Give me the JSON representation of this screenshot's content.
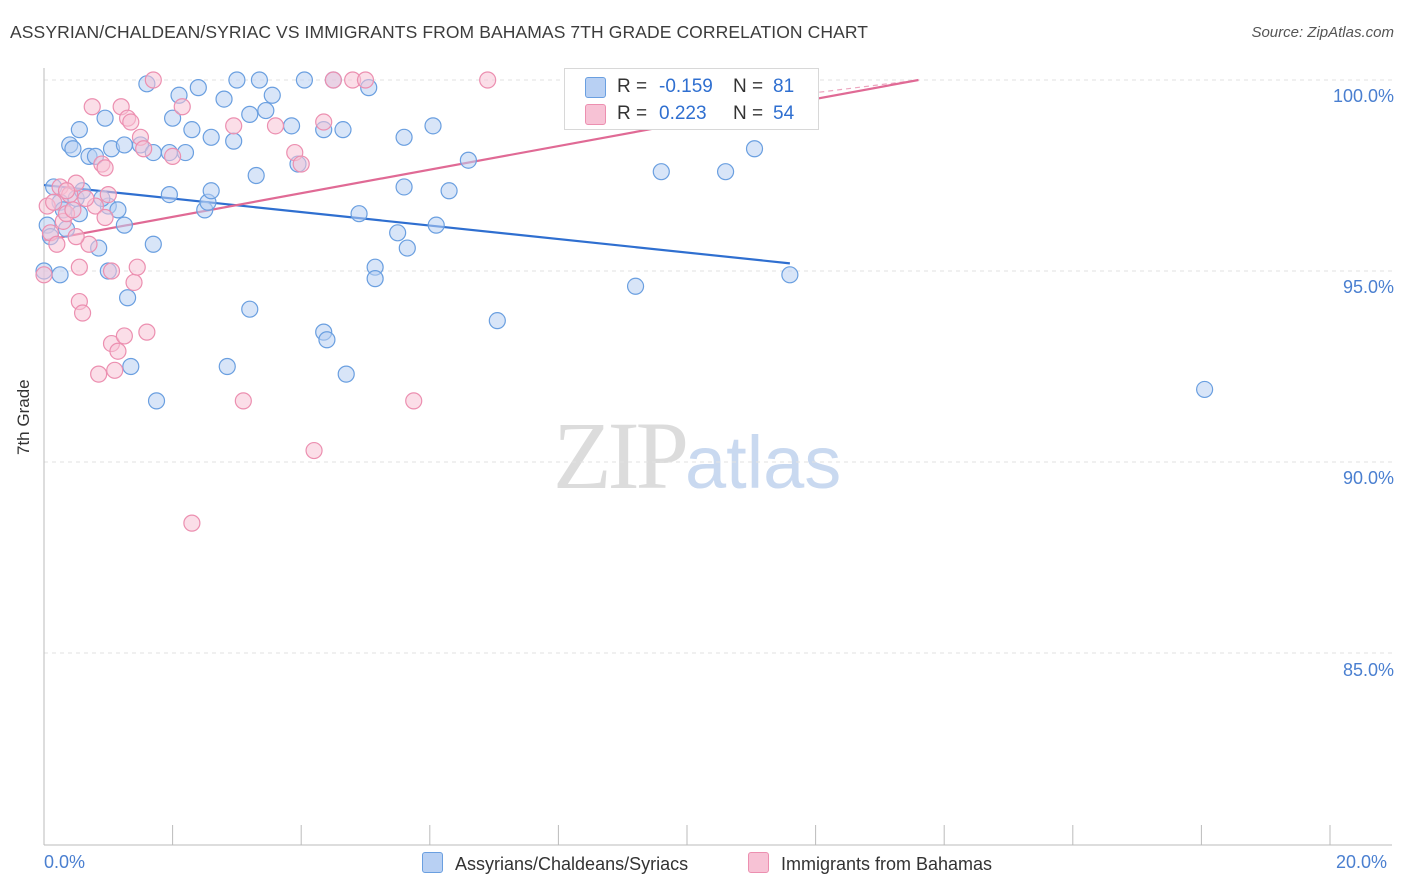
{
  "header": {
    "title": "ASSYRIAN/CHALDEAN/SYRIAC VS IMMIGRANTS FROM BAHAMAS 7TH GRADE CORRELATION CHART",
    "source": "Source: ZipAtlas.com"
  },
  "watermark": {
    "zip": "ZIP",
    "atlas": "atlas"
  },
  "legend": {
    "series1": {
      "r_label": "R =",
      "r_value": "-0.159",
      "n_label": "N =",
      "n_value": "81"
    },
    "series2": {
      "r_label": "R =",
      "r_value": "0.223",
      "n_label": "N =",
      "n_value": "54"
    }
  },
  "colors": {
    "blue": "#6a9fe0",
    "blue_fill": "#b8d0f3",
    "blue_line": "#2f6fd0",
    "pink": "#ec8fb0",
    "pink_fill": "#f7c2d5",
    "pink_line": "#e06a95",
    "tick_text": "#4a7fd0",
    "grid": "#e2e2e2"
  },
  "chart_data": {
    "type": "scatter",
    "title": "ASSYRIAN/CHALDEAN/SYRIAC VS IMMIGRANTS FROM BAHAMAS 7TH GRADE CORRELATION CHART",
    "xlabel": "",
    "ylabel": "7th Grade",
    "xlim": [
      0,
      20
    ],
    "ylim": [
      80.5,
      100.5
    ],
    "x_tick_labels": [
      "0.0%",
      "20.0%"
    ],
    "y_ticks": [
      85,
      90,
      95,
      100
    ],
    "y_tick_labels": [
      "85.0%",
      "90.0%",
      "95.0%",
      "100.0%"
    ],
    "grid": true,
    "legend_position": "top-center",
    "series": [
      {
        "name": "Assyrians/Chaldeans/Syriacs",
        "color": "blue",
        "R": -0.159,
        "N": 81,
        "trend": {
          "x": [
            0.0,
            11.6
          ],
          "y": [
            97.25,
            95.2
          ]
        },
        "points": [
          [
            0.05,
            96.2
          ],
          [
            0.1,
            95.9
          ],
          [
            0.15,
            97.2
          ],
          [
            0.25,
            96.8
          ],
          [
            0.35,
            96.1
          ],
          [
            0.25,
            94.9
          ],
          [
            0.55,
            96.5
          ],
          [
            0.4,
            98.3
          ],
          [
            0.45,
            98.2
          ],
          [
            0.55,
            98.7
          ],
          [
            0.5,
            96.9
          ],
          [
            0.6,
            97.1
          ],
          [
            0.7,
            98.0
          ],
          [
            0.8,
            98.0
          ],
          [
            0.85,
            95.6
          ],
          [
            0.95,
            99.0
          ],
          [
            1.05,
            98.2
          ],
          [
            1.0,
            96.7
          ],
          [
            1.0,
            95.0
          ],
          [
            1.25,
            98.3
          ],
          [
            1.25,
            96.2
          ],
          [
            1.3,
            94.3
          ],
          [
            1.35,
            92.5
          ],
          [
            1.5,
            98.3
          ],
          [
            1.6,
            99.9
          ],
          [
            1.7,
            98.1
          ],
          [
            1.7,
            95.7
          ],
          [
            1.75,
            91.6
          ],
          [
            1.95,
            97.0
          ],
          [
            1.95,
            98.1
          ],
          [
            2.0,
            99.0
          ],
          [
            2.1,
            99.6
          ],
          [
            2.2,
            98.1
          ],
          [
            2.3,
            98.7
          ],
          [
            2.4,
            99.8
          ],
          [
            2.5,
            96.6
          ],
          [
            2.55,
            96.8
          ],
          [
            2.6,
            97.1
          ],
          [
            2.6,
            98.5
          ],
          [
            2.8,
            99.5
          ],
          [
            2.85,
            92.5
          ],
          [
            3.0,
            100.0
          ],
          [
            3.2,
            99.1
          ],
          [
            3.2,
            94.0
          ],
          [
            3.3,
            97.5
          ],
          [
            3.35,
            100.0
          ],
          [
            3.45,
            99.2
          ],
          [
            3.55,
            99.6
          ],
          [
            3.85,
            98.8
          ],
          [
            3.95,
            97.8
          ],
          [
            4.05,
            100.0
          ],
          [
            4.35,
            98.7
          ],
          [
            4.35,
            93.4
          ],
          [
            4.4,
            93.2
          ],
          [
            4.5,
            100.0
          ],
          [
            4.7,
            92.3
          ],
          [
            4.9,
            96.5
          ],
          [
            5.05,
            99.8
          ],
          [
            5.15,
            95.1
          ],
          [
            5.15,
            94.8
          ],
          [
            5.5,
            96.0
          ],
          [
            5.6,
            97.2
          ],
          [
            5.6,
            98.5
          ],
          [
            5.65,
            95.6
          ],
          [
            6.05,
            98.8
          ],
          [
            6.1,
            96.2
          ],
          [
            6.3,
            97.1
          ],
          [
            6.6,
            97.9
          ],
          [
            7.05,
            93.7
          ],
          [
            9.2,
            94.6
          ],
          [
            9.6,
            97.6
          ],
          [
            10.6,
            97.6
          ],
          [
            11.05,
            98.2
          ],
          [
            11.6,
            94.9
          ],
          [
            18.05,
            91.9
          ],
          [
            0.3,
            96.6
          ],
          [
            0.9,
            96.9
          ],
          [
            1.15,
            96.6
          ],
          [
            2.95,
            98.4
          ],
          [
            4.65,
            98.7
          ],
          [
            0.0,
            95.0
          ]
        ]
      },
      {
        "name": "Immigrants from Bahamas",
        "color": "pink",
        "R": 0.223,
        "N": 54,
        "trend": {
          "x": [
            0.0,
            13.6
          ],
          "y": [
            95.8,
            100.0
          ]
        },
        "points": [
          [
            0.05,
            96.7
          ],
          [
            0.1,
            96.0
          ],
          [
            0.2,
            95.7
          ],
          [
            0.25,
            97.2
          ],
          [
            0.3,
            96.3
          ],
          [
            0.35,
            96.5
          ],
          [
            0.4,
            97.0
          ],
          [
            0.45,
            96.6
          ],
          [
            0.5,
            97.3
          ],
          [
            0.55,
            95.1
          ],
          [
            0.55,
            94.2
          ],
          [
            0.6,
            93.9
          ],
          [
            0.7,
            95.7
          ],
          [
            0.75,
            99.3
          ],
          [
            0.8,
            96.7
          ],
          [
            0.85,
            92.3
          ],
          [
            0.9,
            97.8
          ],
          [
            0.95,
            96.4
          ],
          [
            1.0,
            97.0
          ],
          [
            1.05,
            95.0
          ],
          [
            1.05,
            93.1
          ],
          [
            1.1,
            92.4
          ],
          [
            1.15,
            92.9
          ],
          [
            1.2,
            99.3
          ],
          [
            1.25,
            93.3
          ],
          [
            1.3,
            99.0
          ],
          [
            1.35,
            98.9
          ],
          [
            1.4,
            94.7
          ],
          [
            1.45,
            95.1
          ],
          [
            1.5,
            98.5
          ],
          [
            1.55,
            98.2
          ],
          [
            1.6,
            93.4
          ],
          [
            1.7,
            100.0
          ],
          [
            2.0,
            98.0
          ],
          [
            2.15,
            99.3
          ],
          [
            2.3,
            88.4
          ],
          [
            2.95,
            98.8
          ],
          [
            3.1,
            91.6
          ],
          [
            3.6,
            98.8
          ],
          [
            3.9,
            98.1
          ],
          [
            4.0,
            97.8
          ],
          [
            4.2,
            90.3
          ],
          [
            4.35,
            98.9
          ],
          [
            4.5,
            100.0
          ],
          [
            4.8,
            100.0
          ],
          [
            5.0,
            100.0
          ],
          [
            5.75,
            91.6
          ],
          [
            6.9,
            100.0
          ],
          [
            0.0,
            94.9
          ],
          [
            0.15,
            96.8
          ],
          [
            0.65,
            96.9
          ],
          [
            0.35,
            97.1
          ],
          [
            0.95,
            97.7
          ],
          [
            0.5,
            95.9
          ]
        ]
      }
    ]
  },
  "bottom_legend": {
    "item1": "Assyrians/Chaldeans/Syriacs",
    "item2": "Immigrants from Bahamas"
  }
}
